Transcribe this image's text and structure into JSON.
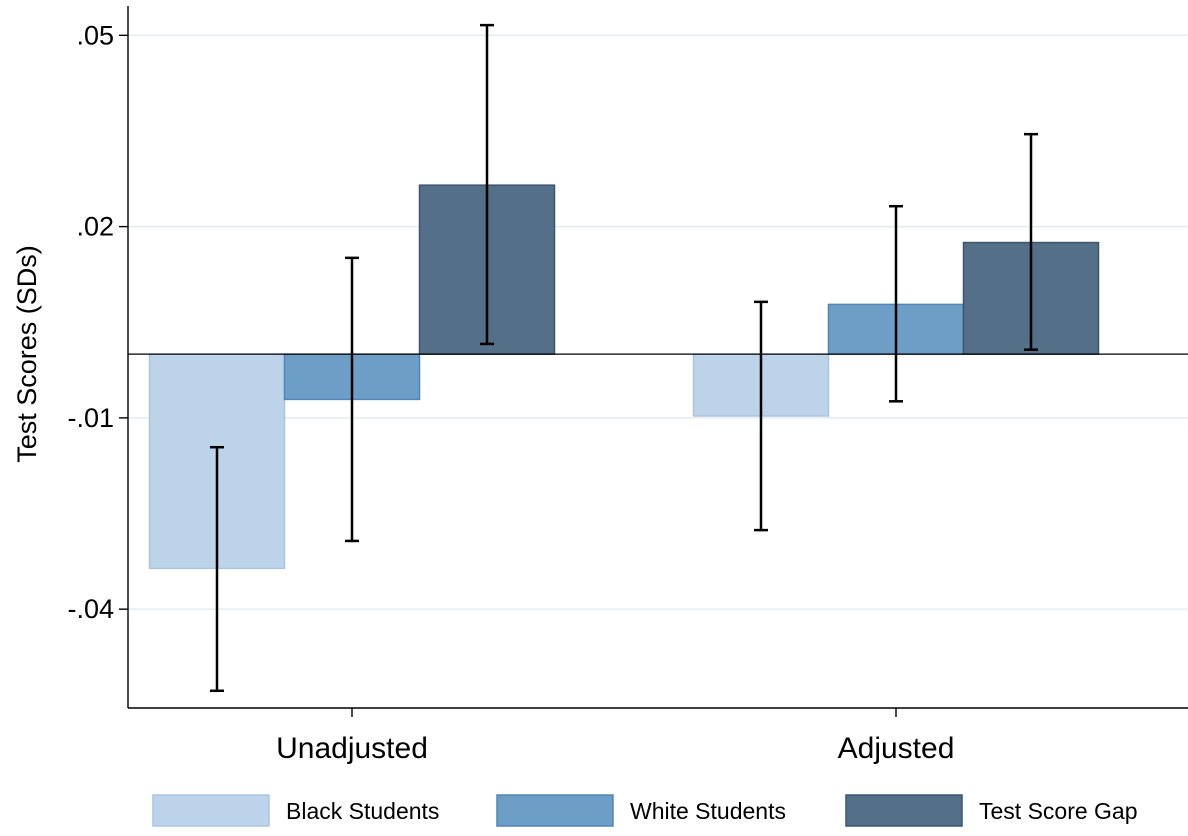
{
  "chart_data": {
    "type": "bar",
    "ylabel": "Test Scores (SDs)",
    "xlabel": "",
    "title": "",
    "categories": [
      "Unadjusted",
      "Adjusted"
    ],
    "y_ticks": [
      0.05,
      0.02,
      -0.01,
      -0.04
    ],
    "y_tick_labels": [
      ".05",
      ".02",
      "-.01",
      "-.04"
    ],
    "ylim": [
      -0.0555,
      0.0546
    ],
    "grid": true,
    "legend_position": "bottom",
    "series": [
      {
        "name": "Black Students",
        "color": "#bcd3e9",
        "values": [
          -0.0336,
          -0.0097
        ],
        "ci_low": [
          -0.0528,
          -0.0276
        ],
        "ci_high": [
          -0.0146,
          0.0082
        ]
      },
      {
        "name": "White Students",
        "color": "#6d9ec6",
        "values": [
          -0.0071,
          0.0078
        ],
        "ci_low": [
          -0.0293,
          -0.0074
        ],
        "ci_high": [
          0.0151,
          0.0232
        ]
      },
      {
        "name": "Test Score Gap",
        "color": "#546f88",
        "values": [
          0.0265,
          0.0175
        ],
        "ci_low": [
          0.0016,
          0.0007
        ],
        "ci_high": [
          0.0516,
          0.0345
        ]
      }
    ]
  }
}
